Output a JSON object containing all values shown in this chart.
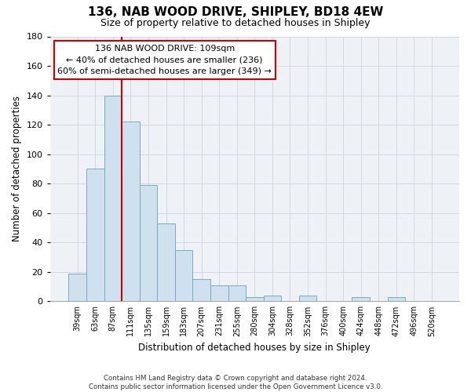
{
  "title": "136, NAB WOOD DRIVE, SHIPLEY, BD18 4EW",
  "subtitle": "Size of property relative to detached houses in Shipley",
  "xlabel": "Distribution of detached houses by size in Shipley",
  "ylabel": "Number of detached properties",
  "bar_color": "#cfe0ee",
  "bar_edge_color": "#7aaabf",
  "categories": [
    "39sqm",
    "63sqm",
    "87sqm",
    "111sqm",
    "135sqm",
    "159sqm",
    "183sqm",
    "207sqm",
    "231sqm",
    "255sqm",
    "280sqm",
    "304sqm",
    "328sqm",
    "352sqm",
    "376sqm",
    "400sqm",
    "424sqm",
    "448sqm",
    "472sqm",
    "496sqm",
    "520sqm"
  ],
  "values": [
    19,
    90,
    140,
    122,
    79,
    53,
    35,
    15,
    11,
    11,
    3,
    4,
    0,
    4,
    0,
    0,
    3,
    0,
    3,
    0,
    0
  ],
  "ylim": [
    0,
    180
  ],
  "yticks": [
    0,
    20,
    40,
    60,
    80,
    100,
    120,
    140,
    160,
    180
  ],
  "vline_index": 2.5,
  "vline_color": "#cc0000",
  "ann_line1": "136 NAB WOOD DRIVE: 109sqm",
  "ann_line2": "← 40% of detached houses are smaller (236)",
  "ann_line3": "60% of semi-detached houses are larger (349) →",
  "annotation_box_color": "#ffffff",
  "annotation_box_edge": "#cc0000",
  "footer_line1": "Contains HM Land Registry data © Crown copyright and database right 2024.",
  "footer_line2": "Contains public sector information licensed under the Open Government Licence v3.0.",
  "background_color": "#eef2f7",
  "grid_color": "#d0d8e4"
}
